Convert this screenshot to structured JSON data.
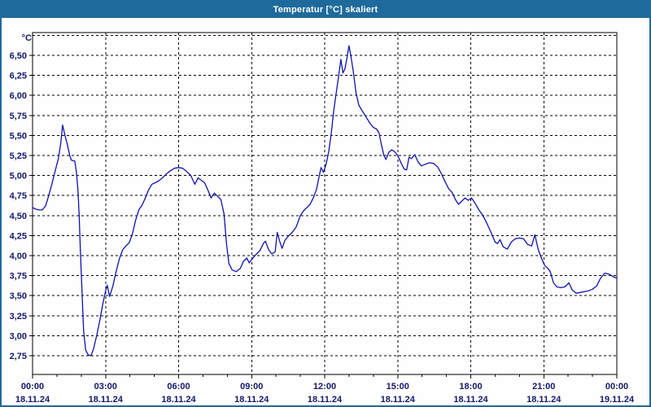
{
  "window": {
    "title": "Temperatur [°C] skaliert"
  },
  "chart_data": {
    "type": "line",
    "title": "Temperatur [°C] skaliert",
    "ylabel": "°C",
    "xlabel": "",
    "grid": "dashed",
    "legend": "none",
    "line_color": "#1112ad",
    "y_axis": {
      "min": 2.75,
      "max": 6.75,
      "tick_step": 0.25,
      "decimal_separator": "comma"
    },
    "x_axis": {
      "range_hours": 24,
      "major_tick_hours": 3,
      "minor_tick_hours": 1
    },
    "y_ticks": [
      {
        "label": "6,50",
        "value": 6.5
      },
      {
        "label": "6,25",
        "value": 6.25
      },
      {
        "label": "6,00",
        "value": 6.0
      },
      {
        "label": "5,75",
        "value": 5.75
      },
      {
        "label": "5,50",
        "value": 5.5
      },
      {
        "label": "5,25",
        "value": 5.25
      },
      {
        "label": "5,00",
        "value": 5.0
      },
      {
        "label": "4,75",
        "value": 4.75
      },
      {
        "label": "4,50",
        "value": 4.5
      },
      {
        "label": "4,25",
        "value": 4.25
      },
      {
        "label": "4,00",
        "value": 4.0
      },
      {
        "label": "3,75",
        "value": 3.75
      },
      {
        "label": "3,50",
        "value": 3.5
      },
      {
        "label": "3,25",
        "value": 3.25
      },
      {
        "label": "3,00",
        "value": 3.0
      },
      {
        "label": "2,75",
        "value": 2.75
      }
    ],
    "x_ticks": [
      {
        "hour": 0,
        "time": "00:00",
        "date": "18.11.24"
      },
      {
        "hour": 3,
        "time": "03:00",
        "date": "18.11.24"
      },
      {
        "hour": 6,
        "time": "06:00",
        "date": "18.11.24"
      },
      {
        "hour": 9,
        "time": "09:00",
        "date": "18.11.24"
      },
      {
        "hour": 12,
        "time": "12:00",
        "date": "18.11.24"
      },
      {
        "hour": 15,
        "time": "15:00",
        "date": "18.11.24"
      },
      {
        "hour": 18,
        "time": "18:00",
        "date": "18.11.24"
      },
      {
        "hour": 21,
        "time": "21:00",
        "date": "18.11.24"
      },
      {
        "hour": 24,
        "time": "00:00",
        "date": "19.11.24"
      }
    ],
    "series": [
      {
        "name": "Temperatur [°C]",
        "color": "#1112ad",
        "points": [
          [
            "00:00",
            4.6
          ],
          [
            "00:08",
            4.58
          ],
          [
            "00:16",
            4.57
          ],
          [
            "00:24",
            4.57
          ],
          [
            "00:32",
            4.62
          ],
          [
            "00:40",
            4.75
          ],
          [
            "00:48",
            4.9
          ],
          [
            "00:56",
            5.06
          ],
          [
            "01:04",
            5.22
          ],
          [
            "01:10",
            5.42
          ],
          [
            "01:14",
            5.63
          ],
          [
            "01:19",
            5.52
          ],
          [
            "01:26",
            5.38
          ],
          [
            "01:32",
            5.24
          ],
          [
            "01:36",
            5.19
          ],
          [
            "01:44",
            5.18
          ],
          [
            "01:48",
            5.05
          ],
          [
            "01:52",
            4.82
          ],
          [
            "01:55",
            4.5
          ],
          [
            "01:58",
            4.05
          ],
          [
            "02:02",
            3.55
          ],
          [
            "02:06",
            3.05
          ],
          [
            "02:11",
            2.82
          ],
          [
            "02:17",
            2.76
          ],
          [
            "02:24",
            2.75
          ],
          [
            "02:30",
            2.83
          ],
          [
            "02:38",
            3.0
          ],
          [
            "02:46",
            3.2
          ],
          [
            "02:54",
            3.42
          ],
          [
            "03:00",
            3.56
          ],
          [
            "03:04",
            3.63
          ],
          [
            "03:10",
            3.49
          ],
          [
            "03:18",
            3.62
          ],
          [
            "03:26",
            3.8
          ],
          [
            "03:34",
            3.96
          ],
          [
            "03:42",
            4.07
          ],
          [
            "03:50",
            4.12
          ],
          [
            "03:58",
            4.16
          ],
          [
            "04:06",
            4.27
          ],
          [
            "04:14",
            4.44
          ],
          [
            "04:22",
            4.57
          ],
          [
            "04:30",
            4.63
          ],
          [
            "04:38",
            4.72
          ],
          [
            "04:46",
            4.82
          ],
          [
            "04:54",
            4.89
          ],
          [
            "05:02",
            4.91
          ],
          [
            "05:10",
            4.93
          ],
          [
            "05:20",
            4.97
          ],
          [
            "05:30",
            5.02
          ],
          [
            "05:40",
            5.06
          ],
          [
            "05:50",
            5.09
          ],
          [
            "06:00",
            5.1
          ],
          [
            "06:10",
            5.09
          ],
          [
            "06:20",
            5.05
          ],
          [
            "06:30",
            5.0
          ],
          [
            "06:40",
            4.89
          ],
          [
            "06:48",
            4.97
          ],
          [
            "06:56",
            4.94
          ],
          [
            "07:04",
            4.91
          ],
          [
            "07:12",
            4.82
          ],
          [
            "07:20",
            4.72
          ],
          [
            "07:28",
            4.78
          ],
          [
            "07:36",
            4.74
          ],
          [
            "07:44",
            4.7
          ],
          [
            "07:52",
            4.52
          ],
          [
            "07:58",
            4.15
          ],
          [
            "08:04",
            3.9
          ],
          [
            "08:12",
            3.82
          ],
          [
            "08:22",
            3.8
          ],
          [
            "08:32",
            3.84
          ],
          [
            "08:40",
            3.93
          ],
          [
            "08:48",
            3.97
          ],
          [
            "08:54",
            3.91
          ],
          [
            "09:00",
            3.95
          ],
          [
            "09:10",
            4.01
          ],
          [
            "09:20",
            4.06
          ],
          [
            "09:30",
            4.16
          ],
          [
            "09:34",
            4.18
          ],
          [
            "09:42",
            4.07
          ],
          [
            "09:50",
            4.02
          ],
          [
            "09:58",
            4.05
          ],
          [
            "10:03",
            4.29
          ],
          [
            "10:09",
            4.18
          ],
          [
            "10:15",
            4.09
          ],
          [
            "10:22",
            4.19
          ],
          [
            "10:30",
            4.24
          ],
          [
            "10:40",
            4.29
          ],
          [
            "10:50",
            4.36
          ],
          [
            "11:00",
            4.5
          ],
          [
            "11:08",
            4.56
          ],
          [
            "11:16",
            4.6
          ],
          [
            "11:24",
            4.64
          ],
          [
            "11:32",
            4.72
          ],
          [
            "11:40",
            4.83
          ],
          [
            "11:46",
            4.98
          ],
          [
            "11:51",
            5.1
          ],
          [
            "11:57",
            5.04
          ],
          [
            "12:04",
            5.15
          ],
          [
            "12:10",
            5.3
          ],
          [
            "12:16",
            5.52
          ],
          [
            "12:22",
            5.8
          ],
          [
            "12:28",
            6.02
          ],
          [
            "12:34",
            6.23
          ],
          [
            "12:40",
            6.45
          ],
          [
            "12:45",
            6.28
          ],
          [
            "12:50",
            6.33
          ],
          [
            "12:56",
            6.5
          ],
          [
            "13:00",
            6.62
          ],
          [
            "13:05",
            6.48
          ],
          [
            "13:11",
            6.28
          ],
          [
            "13:17",
            6.04
          ],
          [
            "13:24",
            5.88
          ],
          [
            "13:32",
            5.81
          ],
          [
            "13:42",
            5.73
          ],
          [
            "13:52",
            5.65
          ],
          [
            "14:00",
            5.6
          ],
          [
            "14:08",
            5.58
          ],
          [
            "14:14",
            5.53
          ],
          [
            "14:20",
            5.38
          ],
          [
            "14:26",
            5.25
          ],
          [
            "14:31",
            5.2
          ],
          [
            "14:38",
            5.29
          ],
          [
            "14:45",
            5.32
          ],
          [
            "14:52",
            5.3
          ],
          [
            "15:00",
            5.25
          ],
          [
            "15:08",
            5.16
          ],
          [
            "15:16",
            5.08
          ],
          [
            "15:22",
            5.07
          ],
          [
            "15:28",
            5.23
          ],
          [
            "15:34",
            5.21
          ],
          [
            "15:42",
            5.26
          ],
          [
            "15:50",
            5.17
          ],
          [
            "15:58",
            5.12
          ],
          [
            "16:08",
            5.14
          ],
          [
            "16:18",
            5.16
          ],
          [
            "16:28",
            5.15
          ],
          [
            "16:38",
            5.11
          ],
          [
            "16:48",
            5.02
          ],
          [
            "16:58",
            4.91
          ],
          [
            "17:06",
            4.83
          ],
          [
            "17:14",
            4.79
          ],
          [
            "17:22",
            4.7
          ],
          [
            "17:30",
            4.64
          ],
          [
            "17:38",
            4.68
          ],
          [
            "17:46",
            4.72
          ],
          [
            "17:54",
            4.69
          ],
          [
            "18:02",
            4.72
          ],
          [
            "18:10",
            4.66
          ],
          [
            "18:20",
            4.57
          ],
          [
            "18:30",
            4.5
          ],
          [
            "18:40",
            4.4
          ],
          [
            "18:50",
            4.29
          ],
          [
            "19:00",
            4.17
          ],
          [
            "19:06",
            4.15
          ],
          [
            "19:12",
            4.2
          ],
          [
            "19:20",
            4.11
          ],
          [
            "19:30",
            4.08
          ],
          [
            "19:40",
            4.17
          ],
          [
            "19:50",
            4.21
          ],
          [
            "20:00",
            4.22
          ],
          [
            "20:10",
            4.21
          ],
          [
            "20:20",
            4.14
          ],
          [
            "20:30",
            4.12
          ],
          [
            "20:38",
            4.26
          ],
          [
            "20:46",
            4.08
          ],
          [
            "20:54",
            3.97
          ],
          [
            "21:02",
            3.88
          ],
          [
            "21:10",
            3.84
          ],
          [
            "21:16",
            3.8
          ],
          [
            "21:24",
            3.66
          ],
          [
            "21:32",
            3.61
          ],
          [
            "21:42",
            3.6
          ],
          [
            "21:52",
            3.61
          ],
          [
            "22:02",
            3.66
          ],
          [
            "22:10",
            3.57
          ],
          [
            "22:20",
            3.53
          ],
          [
            "22:30",
            3.54
          ],
          [
            "22:40",
            3.55
          ],
          [
            "22:50",
            3.56
          ],
          [
            "23:00",
            3.58
          ],
          [
            "23:10",
            3.62
          ],
          [
            "23:20",
            3.72
          ],
          [
            "23:30",
            3.78
          ],
          [
            "23:40",
            3.77
          ],
          [
            "23:50",
            3.74
          ],
          [
            "24:00",
            3.72
          ]
        ]
      }
    ]
  },
  "colors": {
    "titlebar": "#1e6a9c",
    "window_border": "#1e6a9c",
    "background": "#fdfefd",
    "axis_text": "#14166b",
    "grid": "#000000"
  }
}
